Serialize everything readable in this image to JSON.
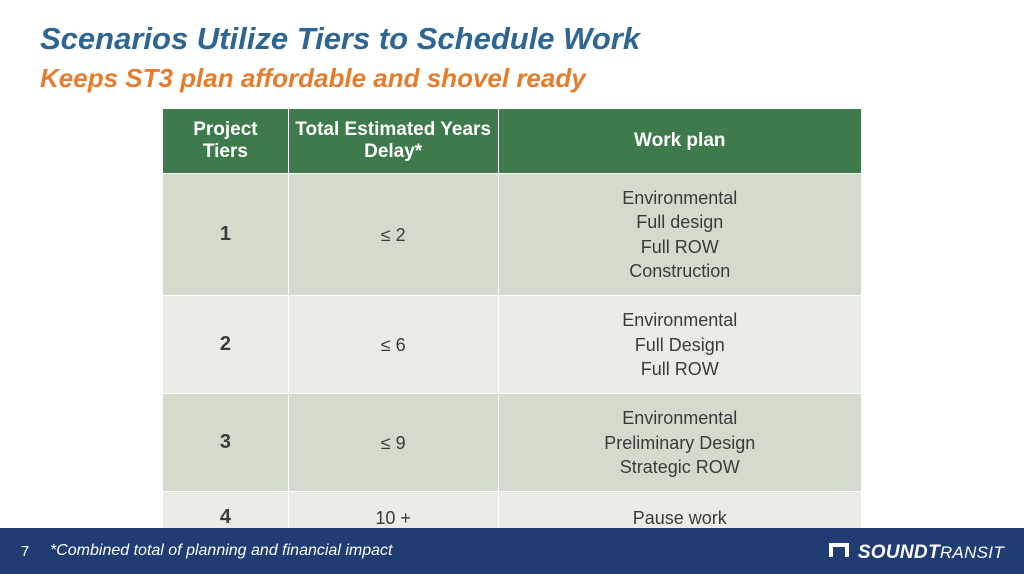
{
  "title": "Scenarios Utilize Tiers to Schedule Work",
  "subtitle": "Keeps ST3 plan affordable and shovel ready",
  "table": {
    "headers": {
      "tier": "Project Tiers",
      "delay": "Total Estimated Years Delay*",
      "plan": "Work plan"
    },
    "rows": [
      {
        "tier": "1",
        "delay": "≤ 2",
        "plan": "Environmental\nFull design\nFull ROW\nConstruction"
      },
      {
        "tier": "2",
        "delay": "≤ 6",
        "plan": "Environmental\nFull Design\nFull ROW"
      },
      {
        "tier": "3",
        "delay": "≤ 9",
        "plan": "Environmental\nPreliminary Design\nStrategic ROW"
      },
      {
        "tier": "4",
        "delay": "10 +",
        "plan": "Pause work"
      }
    ],
    "header_bg": "#3e7a4c",
    "header_fg": "#ffffff",
    "row_odd_bg": "#d4dbcd",
    "row_even_bg": "#eaede6",
    "text_color": "#3b3b3b"
  },
  "footer": {
    "page_number": "7",
    "footnote": "*Combined total of planning and financial impact",
    "bg": "#1f3d73",
    "fg": "#ffffff"
  },
  "logo": {
    "text_bold": "S",
    "text_ound": "OUND",
    "text_t": "T",
    "text_ransit": "RANSIT"
  },
  "colors": {
    "title": "#2e6693",
    "subtitle": "#e57d2e"
  }
}
